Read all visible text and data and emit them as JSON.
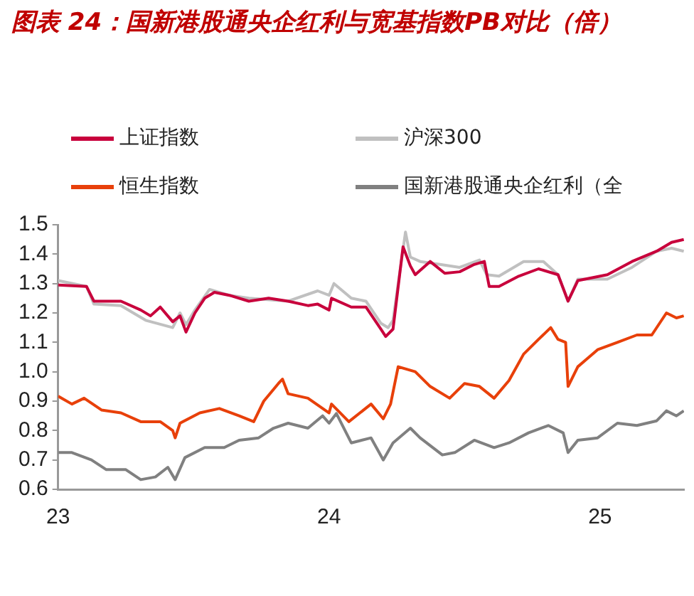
{
  "chart_data": {
    "type": "line",
    "title": "图表 24：国新港股通央企红利与宽基指数PB对比（倍）",
    "xlim": [
      2023,
      2025.31
    ],
    "xticks": [
      {
        "value": 2023,
        "label": "23"
      },
      {
        "value": 2024,
        "label": "24"
      },
      {
        "value": 2025,
        "label": "25"
      }
    ],
    "ylim": [
      0.6,
      1.5
    ],
    "yticks": [
      0.6,
      0.7,
      0.8,
      0.9,
      {
        "value": 1.0,
        "label": "1.0"
      },
      1.1,
      1.2,
      1.3,
      1.4,
      1.5
    ],
    "grid": false,
    "legend": "top",
    "marker": "none",
    "line_style": "solid",
    "series": [
      {
        "name": "上证指数",
        "color": "#c8003c",
        "x": [
          2023,
          2023.105,
          2023.132,
          2023.232,
          2023.305,
          2023.341,
          2023.377,
          2023.423,
          2023.45,
          2023.472,
          2023.505,
          2023.541,
          2023.577,
          2023.632,
          2023.704,
          2023.777,
          2023.849,
          2023.922,
          2023.958,
          2024,
          2024.009,
          2024.082,
          2024.136,
          2024.191,
          2024.209,
          2024.236,
          2024.273,
          2024.3,
          2024.318,
          2024.373,
          2024.427,
          2024.482,
          2024.536,
          2024.573,
          2024.591,
          2024.627,
          2024.7,
          2024.773,
          2024.845,
          2024.882,
          2024.918,
          2025.027,
          2025.118,
          2025.209,
          2025.264,
          2025.309
        ],
        "values": [
          1.295,
          1.29,
          1.24,
          1.24,
          1.21,
          1.19,
          1.22,
          1.17,
          1.19,
          1.135,
          1.2,
          1.25,
          1.27,
          1.26,
          1.24,
          1.25,
          1.24,
          1.225,
          1.23,
          1.21,
          1.25,
          1.22,
          1.22,
          1.145,
          1.12,
          1.145,
          1.425,
          1.36,
          1.33,
          1.375,
          1.335,
          1.34,
          1.365,
          1.375,
          1.29,
          1.29,
          1.325,
          1.35,
          1.33,
          1.24,
          1.31,
          1.33,
          1.375,
          1.41,
          1.44,
          1.45
        ]
      },
      {
        "name": "沪深300",
        "color": "#c0c0c0",
        "x": [
          2023,
          2023.105,
          2023.132,
          2023.232,
          2023.323,
          2023.423,
          2023.45,
          2023.472,
          2023.505,
          2023.559,
          2023.632,
          2023.704,
          2023.849,
          2023.958,
          2024,
          2024.018,
          2024.082,
          2024.136,
          2024.191,
          2024.218,
          2024.236,
          2024.282,
          2024.3,
          2024.336,
          2024.409,
          2024.482,
          2024.555,
          2024.582,
          2024.627,
          2024.718,
          2024.791,
          2024.845,
          2024.882,
          2024.918,
          2025.027,
          2025.118,
          2025.209,
          2025.264,
          2025.309
        ],
        "values": [
          1.31,
          1.29,
          1.23,
          1.225,
          1.175,
          1.15,
          1.2,
          1.16,
          1.21,
          1.28,
          1.26,
          1.25,
          1.24,
          1.275,
          1.26,
          1.3,
          1.25,
          1.24,
          1.165,
          1.15,
          1.175,
          1.475,
          1.39,
          1.375,
          1.365,
          1.355,
          1.38,
          1.33,
          1.325,
          1.375,
          1.375,
          1.33,
          1.24,
          1.315,
          1.315,
          1.355,
          1.41,
          1.42,
          1.41
        ]
      },
      {
        "name": "恒生指数",
        "color": "#e8400a",
        "x": [
          2023,
          2023.051,
          2023.096,
          2023.16,
          2023.232,
          2023.305,
          2023.377,
          2023.423,
          2023.432,
          2023.45,
          2023.523,
          2023.595,
          2023.668,
          2023.722,
          2023.759,
          2023.813,
          2023.828,
          2023.849,
          2023.922,
          2024,
          2024.009,
          2024.073,
          2024.155,
          2024.2,
          2024.227,
          2024.255,
          2024.318,
          2024.373,
          2024.445,
          2024.5,
          2024.555,
          2024.609,
          2024.664,
          2024.718,
          2024.773,
          2024.818,
          2024.845,
          2024.873,
          2024.882,
          2024.918,
          2024.991,
          2025.064,
          2025.136,
          2025.191,
          2025.245,
          2025.282,
          2025.309
        ],
        "values": [
          0.917,
          0.89,
          0.91,
          0.87,
          0.86,
          0.83,
          0.83,
          0.8,
          0.775,
          0.825,
          0.86,
          0.875,
          0.85,
          0.83,
          0.9,
          0.96,
          0.975,
          0.925,
          0.91,
          0.86,
          0.89,
          0.83,
          0.89,
          0.84,
          0.89,
          1.017,
          1.0,
          0.95,
          0.91,
          0.96,
          0.95,
          0.91,
          0.97,
          1.06,
          1.11,
          1.15,
          1.11,
          1.1,
          0.95,
          1.017,
          1.075,
          1.1,
          1.125,
          1.125,
          1.2,
          1.183,
          1.19
        ]
      },
      {
        "name": "国新港股通央企红利（全",
        "color": "#808080",
        "x": [
          2023,
          2023.051,
          2023.123,
          2023.178,
          2023.25,
          2023.305,
          2023.359,
          2023.405,
          2023.432,
          2023.468,
          2023.541,
          2023.613,
          2023.668,
          2023.74,
          2023.795,
          2023.849,
          2023.922,
          2023.976,
          2024,
          2024.027,
          2024.082,
          2024.155,
          2024.2,
          2024.236,
          2024.3,
          2024.336,
          2024.418,
          2024.464,
          2024.536,
          2024.609,
          2024.664,
          2024.736,
          2024.809,
          2024.864,
          2024.882,
          2024.918,
          2024.991,
          2025.064,
          2025.136,
          2025.209,
          2025.245,
          2025.282,
          2025.309
        ],
        "values": [
          0.725,
          0.725,
          0.7,
          0.667,
          0.667,
          0.633,
          0.642,
          0.675,
          0.633,
          0.708,
          0.742,
          0.742,
          0.767,
          0.775,
          0.808,
          0.825,
          0.808,
          0.85,
          0.825,
          0.858,
          0.758,
          0.775,
          0.7,
          0.758,
          0.808,
          0.775,
          0.717,
          0.725,
          0.767,
          0.742,
          0.758,
          0.792,
          0.817,
          0.792,
          0.725,
          0.767,
          0.775,
          0.825,
          0.817,
          0.833,
          0.867,
          0.85,
          0.867
        ]
      }
    ]
  }
}
